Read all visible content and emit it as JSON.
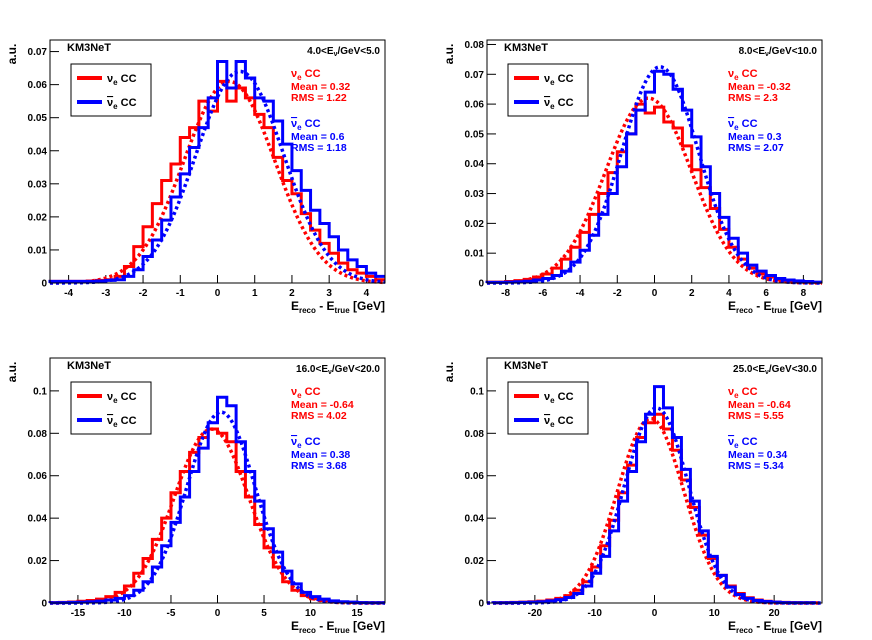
{
  "chart_data": [
    {
      "type": "line",
      "title": "KM3NeT",
      "energy_range": {
        "prefix": "4.0<E",
        "sub": "ν",
        "suffix": "/GeV<5.0"
      },
      "xlabel": {
        "main": "E",
        "sub1": "reco",
        "mid": " - E",
        "sub2": "true",
        "unit": " [GeV]"
      },
      "ylabel": "a.u.",
      "xlim": [
        -4.5,
        4.5
      ],
      "ylim": [
        0,
        0.0735
      ],
      "xticks": [
        -4,
        -3,
        -2,
        -1,
        0,
        1,
        2,
        3,
        4
      ],
      "xtick_labels": [
        "-4",
        "-3",
        "-2",
        "-1",
        "0",
        "1",
        "2",
        "3",
        "4"
      ],
      "yticks": [
        0,
        0.01,
        0.02,
        0.03,
        0.04,
        0.05,
        0.06,
        0.07
      ],
      "ytick_labels": [
        "0",
        "0.01",
        "0.02",
        "0.03",
        "0.04",
        "0.05",
        "0.06",
        "0.07"
      ],
      "legend": {
        "placement": "top-left",
        "entries": [
          {
            "sym": "ν",
            "sub": "e",
            "bar": false,
            "label": " CC",
            "color": "#ff0000"
          },
          {
            "sym": "ν",
            "sub": "e",
            "bar": true,
            "label": " CC",
            "color": "#0000ff"
          }
        ]
      },
      "stats": [
        {
          "name": "ν",
          "sub": "e",
          "bar": false,
          "tail": " CC",
          "mean": "Mean = 0.32",
          "rms": "RMS = 1.22",
          "color": "#ff0000"
        },
        {
          "name": "ν",
          "sub": "e",
          "bar": true,
          "tail": " CC",
          "mean": "Mean = 0.6",
          "rms": "RMS = 1.18",
          "color": "#0000ff"
        }
      ],
      "series": [
        {
          "name": "νe CC",
          "color": "#ff0000",
          "bin_width": 0.25,
          "x": [
            -4.5,
            -4.25,
            -4,
            -3.75,
            -3.5,
            -3.25,
            -3,
            -2.75,
            -2.5,
            -2.25,
            -2,
            -1.75,
            -1.5,
            -1.25,
            -1,
            -0.75,
            -0.5,
            -0.25,
            0,
            0.25,
            0.5,
            0.75,
            1,
            1.25,
            1.5,
            1.75,
            2,
            2.25,
            2.5,
            2.75,
            3,
            3.25,
            3.5,
            3.75,
            4,
            4.25
          ],
          "counts": [
            0.0005,
            0.0005,
            0.0005,
            0.0005,
            0.0006,
            0.0008,
            0.001,
            0.002,
            0.005,
            0.011,
            0.017,
            0.024,
            0.031,
            0.036,
            0.044,
            0.047,
            0.055,
            0.052,
            0.061,
            0.055,
            0.059,
            0.056,
            0.051,
            0.047,
            0.038,
            0.031,
            0.027,
            0.021,
            0.016,
            0.012,
            0.009,
            0.006,
            0.004,
            0.003,
            0.002,
            0.001
          ],
          "fit": {
            "mean": 0.32,
            "sigma": 1.22,
            "amp": 0.061
          }
        },
        {
          "name": "anti-νe CC",
          "color": "#0000ff",
          "bin_width": 0.25,
          "x": [
            -4.5,
            -4.25,
            -4,
            -3.75,
            -3.5,
            -3.25,
            -3,
            -2.75,
            -2.5,
            -2.25,
            -2,
            -1.75,
            -1.5,
            -1.25,
            -1,
            -0.75,
            -0.5,
            -0.25,
            0,
            0.25,
            0.5,
            0.75,
            1,
            1.25,
            1.5,
            1.75,
            2,
            2.25,
            2.5,
            2.75,
            3,
            3.25,
            3.5,
            3.75,
            4,
            4.25
          ],
          "counts": [
            0.0005,
            0.0005,
            0.0005,
            0.0005,
            0.0005,
            0.0006,
            0.0008,
            0.001,
            0.002,
            0.004,
            0.008,
            0.013,
            0.019,
            0.026,
            0.033,
            0.041,
            0.047,
            0.056,
            0.067,
            0.059,
            0.067,
            0.062,
            0.056,
            0.055,
            0.049,
            0.042,
            0.034,
            0.028,
            0.022,
            0.018,
            0.014,
            0.01,
            0.007,
            0.005,
            0.003,
            0.002
          ],
          "fit": {
            "mean": 0.6,
            "sigma": 1.18,
            "amp": 0.064
          }
        }
      ]
    },
    {
      "type": "line",
      "title": "KM3NeT",
      "energy_range": {
        "prefix": "8.0<E",
        "sub": "ν",
        "suffix": "/GeV<10.0"
      },
      "xlabel": {
        "main": "E",
        "sub1": "reco",
        "mid": " - E",
        "sub2": "true",
        "unit": " [GeV]"
      },
      "ylabel": "a.u.",
      "xlim": [
        -9,
        9
      ],
      "ylim": [
        0,
        0.0815
      ],
      "xticks": [
        -8,
        -6,
        -4,
        -2,
        0,
        2,
        4,
        6,
        8
      ],
      "xtick_labels": [
        "-8",
        "-6",
        "-4",
        "-2",
        "0",
        "2",
        "4",
        "6",
        "8"
      ],
      "yticks": [
        0,
        0.01,
        0.02,
        0.03,
        0.04,
        0.05,
        0.06,
        0.07,
        0.08
      ],
      "ytick_labels": [
        "0",
        "0.01",
        "0.02",
        "0.03",
        "0.04",
        "0.05",
        "0.06",
        "0.07",
        "0.08"
      ],
      "legend": {
        "placement": "top-left",
        "entries": [
          {
            "sym": "ν",
            "sub": "e",
            "bar": false,
            "label": " CC",
            "color": "#ff0000"
          },
          {
            "sym": "ν",
            "sub": "e",
            "bar": true,
            "label": " CC",
            "color": "#0000ff"
          }
        ]
      },
      "stats": [
        {
          "name": "ν",
          "sub": "e",
          "bar": false,
          "tail": " CC",
          "mean": "Mean = -0.32",
          "rms": "RMS = 2.3",
          "color": "#ff0000"
        },
        {
          "name": "ν",
          "sub": "e",
          "bar": true,
          "tail": " CC",
          "mean": "Mean = 0.3",
          "rms": "RMS = 2.07",
          "color": "#0000ff"
        }
      ],
      "series": [
        {
          "name": "νe CC",
          "color": "#ff0000",
          "bin_width": 0.5,
          "x": [
            -9,
            -8.5,
            -8,
            -7.5,
            -7,
            -6.5,
            -6,
            -5.5,
            -5,
            -4.5,
            -4,
            -3.5,
            -3,
            -2.5,
            -2,
            -1.5,
            -1,
            -0.5,
            0,
            0.5,
            1,
            1.5,
            2,
            2.5,
            3,
            3.5,
            4,
            4.5,
            5,
            5.5,
            6,
            6.5,
            7,
            7.5,
            8,
            8.5
          ],
          "counts": [
            0.0003,
            0.0003,
            0.0005,
            0.0008,
            0.0012,
            0.002,
            0.003,
            0.005,
            0.008,
            0.012,
            0.017,
            0.023,
            0.03,
            0.037,
            0.044,
            0.05,
            0.06,
            0.057,
            0.059,
            0.054,
            0.052,
            0.046,
            0.038,
            0.032,
            0.025,
            0.018,
            0.012,
            0.008,
            0.005,
            0.003,
            0.002,
            0.001,
            0.0007,
            0.0005,
            0.0003,
            0.0002
          ],
          "fit": {
            "mean": -0.32,
            "sigma": 2.3,
            "amp": 0.062
          }
        },
        {
          "name": "anti-νe CC",
          "color": "#0000ff",
          "bin_width": 0.5,
          "x": [
            -9,
            -8.5,
            -8,
            -7.5,
            -7,
            -6.5,
            -6,
            -5.5,
            -5,
            -4.5,
            -4,
            -3.5,
            -3,
            -2.5,
            -2,
            -1.5,
            -1,
            -0.5,
            0,
            0.5,
            1,
            1.5,
            2,
            2.5,
            3,
            3.5,
            4,
            4.5,
            5,
            5.5,
            6,
            6.5,
            7,
            7.5,
            8,
            8.5
          ],
          "counts": [
            0.0002,
            0.0002,
            0.0003,
            0.0004,
            0.0006,
            0.001,
            0.0015,
            0.0025,
            0.004,
            0.007,
            0.011,
            0.016,
            0.023,
            0.03,
            0.039,
            0.05,
            0.058,
            0.064,
            0.071,
            0.07,
            0.065,
            0.058,
            0.049,
            0.039,
            0.03,
            0.022,
            0.015,
            0.01,
            0.006,
            0.004,
            0.0025,
            0.0015,
            0.001,
            0.0007,
            0.0005,
            0.0003
          ],
          "fit": {
            "mean": 0.3,
            "sigma": 2.07,
            "amp": 0.0725
          }
        }
      ]
    },
    {
      "type": "line",
      "title": "KM3NeT",
      "energy_range": {
        "prefix": "16.0<E",
        "sub": "ν",
        "suffix": "/GeV<20.0"
      },
      "xlabel": {
        "main": "E",
        "sub1": "reco",
        "mid": " - E",
        "sub2": "true",
        "unit": " [GeV]"
      },
      "ylabel": "a.u.",
      "xlim": [
        -18,
        18
      ],
      "ylim": [
        0,
        0.1155
      ],
      "xticks": [
        -15,
        -10,
        -5,
        0,
        5,
        10,
        15
      ],
      "xtick_labels": [
        "-15",
        "-10",
        "-5",
        "0",
        "5",
        "10",
        "15"
      ],
      "yticks": [
        0,
        0.02,
        0.04,
        0.06,
        0.08,
        0.1
      ],
      "ytick_labels": [
        "0",
        "0.02",
        "0.04",
        "0.06",
        "0.08",
        "0.1"
      ],
      "legend": {
        "placement": "top-left",
        "entries": [
          {
            "sym": "ν",
            "sub": "e",
            "bar": false,
            "label": " CC",
            "color": "#ff0000"
          },
          {
            "sym": "ν",
            "sub": "e",
            "bar": true,
            "label": " CC",
            "color": "#0000ff"
          }
        ]
      },
      "stats": [
        {
          "name": "ν",
          "sub": "e",
          "bar": false,
          "tail": " CC",
          "mean": "Mean = -0.64",
          "rms": "RMS = 4.02",
          "color": "#ff0000"
        },
        {
          "name": "ν",
          "sub": "e",
          "bar": true,
          "tail": " CC",
          "mean": "Mean = 0.38",
          "rms": "RMS = 3.68",
          "color": "#0000ff"
        }
      ],
      "series": [
        {
          "name": "νe CC",
          "color": "#ff0000",
          "bin_width": 1,
          "x": [
            -18,
            -17,
            -16,
            -15,
            -14,
            -13,
            -12,
            -11,
            -10,
            -9,
            -8,
            -7,
            -6,
            -5,
            -4,
            -3,
            -2,
            -1,
            0,
            1,
            2,
            3,
            4,
            5,
            6,
            7,
            8,
            9,
            10,
            11,
            12,
            13,
            14,
            15,
            16,
            17
          ],
          "counts": [
            0.0002,
            0.0003,
            0.0005,
            0.0008,
            0.0012,
            0.0018,
            0.003,
            0.005,
            0.008,
            0.014,
            0.021,
            0.03,
            0.04,
            0.052,
            0.062,
            0.071,
            0.078,
            0.082,
            0.08,
            0.076,
            0.062,
            0.05,
            0.037,
            0.026,
            0.017,
            0.01,
            0.006,
            0.0035,
            0.002,
            0.0012,
            0.0008,
            0.0005,
            0.0003,
            0.0002,
            0.0001,
            0.0001
          ],
          "fit": {
            "mean": -0.64,
            "sigma": 4.02,
            "amp": 0.082
          }
        },
        {
          "name": "anti-νe CC",
          "color": "#0000ff",
          "bin_width": 1,
          "x": [
            -18,
            -17,
            -16,
            -15,
            -14,
            -13,
            -12,
            -11,
            -10,
            -9,
            -8,
            -7,
            -6,
            -5,
            -4,
            -3,
            -2,
            -1,
            0,
            1,
            2,
            3,
            4,
            5,
            6,
            7,
            8,
            9,
            10,
            11,
            12,
            13,
            14,
            15,
            16,
            17
          ],
          "counts": [
            0.0001,
            0.0002,
            0.0003,
            0.0004,
            0.0006,
            0.0009,
            0.0014,
            0.0022,
            0.0035,
            0.006,
            0.01,
            0.017,
            0.027,
            0.038,
            0.05,
            0.062,
            0.073,
            0.085,
            0.097,
            0.093,
            0.076,
            0.062,
            0.048,
            0.035,
            0.024,
            0.015,
            0.009,
            0.005,
            0.003,
            0.0018,
            0.001,
            0.0006,
            0.0004,
            0.0002,
            0.0001,
            0.0001
          ],
          "fit": {
            "mean": 0.38,
            "sigma": 3.68,
            "amp": 0.09
          }
        }
      ]
    },
    {
      "type": "line",
      "title": "KM3NeT",
      "energy_range": {
        "prefix": "25.0<E",
        "sub": "ν",
        "suffix": "/GeV<30.0"
      },
      "xlabel": {
        "main": "E",
        "sub1": "reco",
        "mid": " - E",
        "sub2": "true",
        "unit": " [GeV]"
      },
      "ylabel": "a.u.",
      "xlim": [
        -28,
        28
      ],
      "ylim": [
        0,
        0.1155
      ],
      "xticks": [
        -20,
        -10,
        0,
        10,
        20
      ],
      "xtick_labels": [
        "-20",
        "-10",
        "0",
        "10",
        "20"
      ],
      "yticks": [
        0,
        0.02,
        0.04,
        0.06,
        0.08,
        0.1
      ],
      "ytick_labels": [
        "0",
        "0.02",
        "0.04",
        "0.06",
        "0.08",
        "0.1"
      ],
      "legend": {
        "placement": "top-left",
        "entries": [
          {
            "sym": "ν",
            "sub": "e",
            "bar": false,
            "label": " CC",
            "color": "#ff0000"
          },
          {
            "sym": "ν",
            "sub": "e",
            "bar": true,
            "label": " CC",
            "color": "#0000ff"
          }
        ]
      },
      "stats": [
        {
          "name": "ν",
          "sub": "e",
          "bar": false,
          "tail": " CC",
          "mean": "Mean = -0.64",
          "rms": "RMS = 5.55",
          "color": "#ff0000"
        },
        {
          "name": "ν",
          "sub": "e",
          "bar": true,
          "tail": " CC",
          "mean": "Mean = 0.34",
          "rms": "RMS = 5.34",
          "color": "#0000ff"
        }
      ],
      "series": [
        {
          "name": "νe CC",
          "color": "#ff0000",
          "bin_width": 1.5,
          "x": [
            -27,
            -25.5,
            -24,
            -22.5,
            -21,
            -19.5,
            -18,
            -16.5,
            -15,
            -13.5,
            -12,
            -10.5,
            -9,
            -7.5,
            -6,
            -4.5,
            -3,
            -1.5,
            0,
            1.5,
            3,
            4.5,
            6,
            7.5,
            9,
            10.5,
            12,
            13.5,
            15,
            16.5,
            18,
            19.5,
            21,
            22.5,
            24,
            25.5
          ],
          "counts": [
            0.0001,
            0.0002,
            0.0003,
            0.0004,
            0.0006,
            0.0009,
            0.0014,
            0.0022,
            0.0035,
            0.006,
            0.01,
            0.017,
            0.027,
            0.039,
            0.052,
            0.065,
            0.078,
            0.085,
            0.089,
            0.082,
            0.072,
            0.058,
            0.045,
            0.032,
            0.021,
            0.013,
            0.008,
            0.0045,
            0.0025,
            0.0014,
            0.0008,
            0.0005,
            0.0003,
            0.0002,
            0.0001,
            0.0001
          ],
          "fit": {
            "mean": -0.64,
            "sigma": 5.55,
            "amp": 0.087
          }
        },
        {
          "name": "anti-νe CC",
          "color": "#0000ff",
          "bin_width": 1.5,
          "x": [
            -27,
            -25.5,
            -24,
            -22.5,
            -21,
            -19.5,
            -18,
            -16.5,
            -15,
            -13.5,
            -12,
            -10.5,
            -9,
            -7.5,
            -6,
            -4.5,
            -3,
            -1.5,
            0,
            1.5,
            3,
            4.5,
            6,
            7.5,
            9,
            10.5,
            12,
            13.5,
            15,
            16.5,
            18,
            19.5,
            21,
            22.5,
            24,
            25.5
          ],
          "counts": [
            0.0001,
            0.0001,
            0.0002,
            0.0003,
            0.0004,
            0.0006,
            0.001,
            0.0016,
            0.0026,
            0.0045,
            0.008,
            0.014,
            0.022,
            0.034,
            0.048,
            0.062,
            0.076,
            0.089,
            0.102,
            0.092,
            0.078,
            0.063,
            0.048,
            0.034,
            0.022,
            0.013,
            0.0075,
            0.004,
            0.0022,
            0.0012,
            0.0007,
            0.0004,
            0.0002,
            0.0001,
            0.0001,
            0.0001
          ],
          "fit": {
            "mean": 0.34,
            "sigma": 5.34,
            "amp": 0.092
          }
        }
      ]
    }
  ]
}
